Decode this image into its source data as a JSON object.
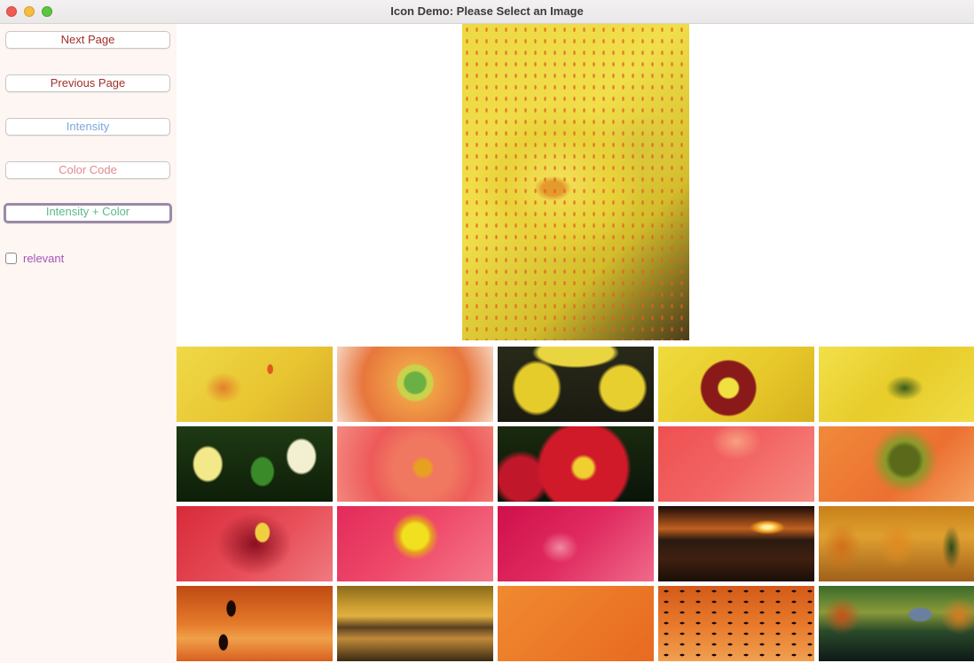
{
  "window": {
    "title": "Icon Demo: Please Select an Image"
  },
  "sidebar": {
    "buttons": [
      {
        "label": "Next Page",
        "color": "#a0302a"
      },
      {
        "label": "Previous Page",
        "color": "#a0302a"
      },
      {
        "label": "Intensity",
        "color": "#7aa9d9"
      },
      {
        "label": "Color Code",
        "color": "#e08a8f"
      },
      {
        "label": "Intensity + Color",
        "color": "#5db98a"
      }
    ],
    "checkbox": {
      "label": "relevant",
      "checked": false
    }
  },
  "main": {
    "preview": {
      "icon": "yellow-canna-flower-image"
    },
    "thumbnails": [
      {
        "icon": "yellow-canna-flower"
      },
      {
        "icon": "orange-gerbera-daisy"
      },
      {
        "icon": "yellow-orchid"
      },
      {
        "icon": "yellow-hibiscus-with-bee"
      },
      {
        "icon": "yellow-flower-petals"
      },
      {
        "icon": "yellow-lilies-green-leaves"
      },
      {
        "icon": "pink-petunia"
      },
      {
        "icon": "red-primrose"
      },
      {
        "icon": "pink-red-petals"
      },
      {
        "icon": "orange-flower-center"
      },
      {
        "icon": "red-hibiscus"
      },
      {
        "icon": "pink-flower-yellow-stamens"
      },
      {
        "icon": "magenta-petals"
      },
      {
        "icon": "ocean-sunset"
      },
      {
        "icon": "autumn-forest"
      },
      {
        "icon": "cranes-sunset"
      },
      {
        "icon": "golden-clouds"
      },
      {
        "icon": "orange-sky"
      },
      {
        "icon": "birds-orange-sky"
      },
      {
        "icon": "lake-house-autumn"
      }
    ]
  }
}
